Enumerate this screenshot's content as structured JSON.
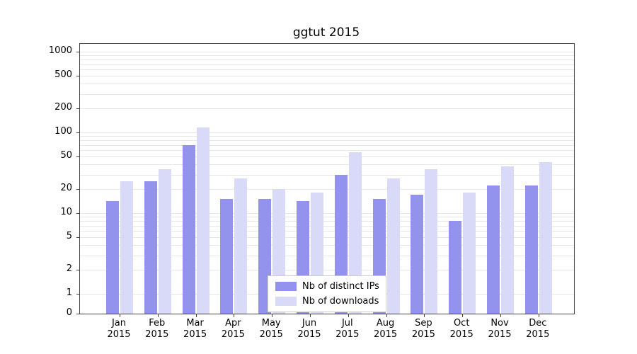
{
  "chart_data": {
    "type": "bar",
    "title": "ggtut 2015",
    "categories": [
      "Jan",
      "Feb",
      "Mar",
      "Apr",
      "May",
      "Jun",
      "Jul",
      "Aug",
      "Sep",
      "Oct",
      "Nov",
      "Dec"
    ],
    "year_label": "2015",
    "series": [
      {
        "name": "Nb of distinct IPs",
        "color": "#9393ee",
        "values": [
          14,
          25,
          70,
          15,
          15,
          14,
          30,
          15,
          17,
          8,
          22,
          22
        ]
      },
      {
        "name": "Nb of downloads",
        "color": "#d9d9f8",
        "values": [
          25,
          35,
          115,
          27,
          20,
          18,
          57,
          27,
          35,
          18,
          38,
          43
        ]
      }
    ],
    "yticks": [
      0,
      1,
      2,
      5,
      10,
      20,
      50,
      100,
      200,
      500,
      1000
    ],
    "yscale": "symlog",
    "ylim": [
      0,
      1250
    ],
    "xlabel": "",
    "ylabel": "",
    "grid": "horizontal-minor-log",
    "legend_position": "bottom-center-inside"
  }
}
